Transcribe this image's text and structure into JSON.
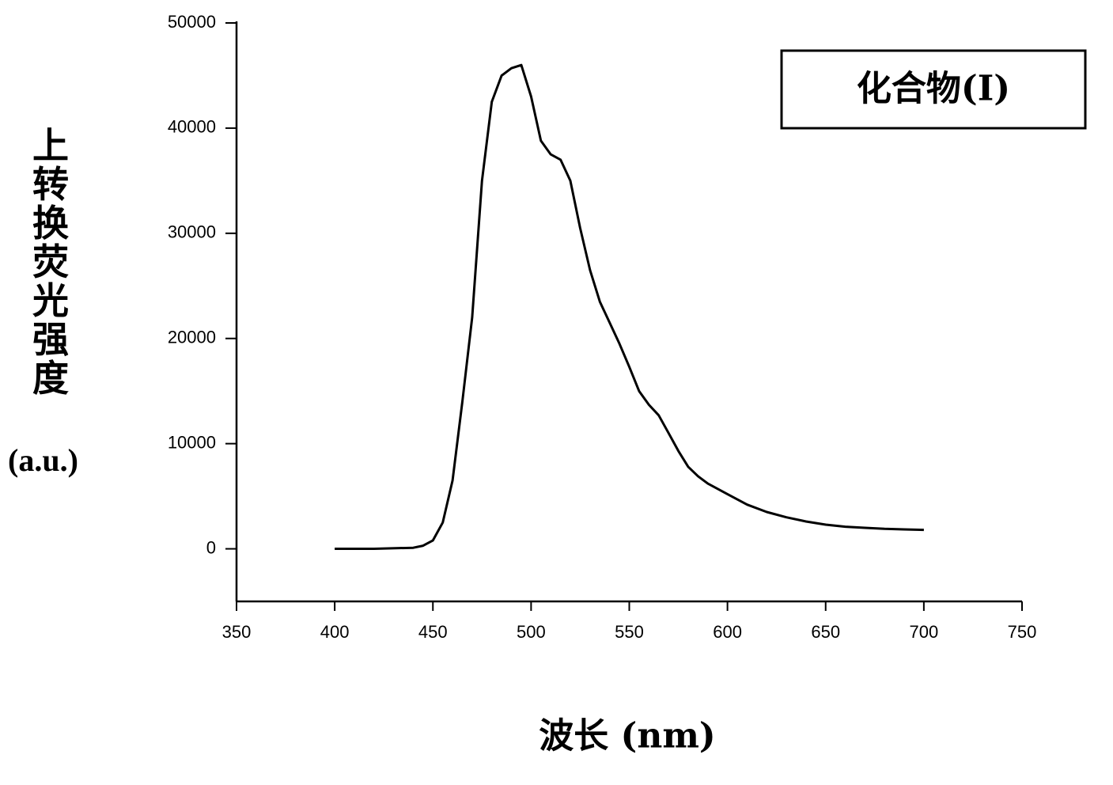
{
  "chart_data": {
    "type": "line",
    "ylabel": "上转换荧光强度",
    "yunit": "(a.u.)",
    "xlabel": "波长 (nm)",
    "legend_label": "化合物(Ⅰ)",
    "x": [
      400,
      420,
      440,
      445,
      450,
      455,
      460,
      465,
      470,
      475,
      480,
      485,
      490,
      495,
      500,
      505,
      510,
      515,
      520,
      525,
      530,
      535,
      540,
      545,
      550,
      555,
      560,
      565,
      570,
      575,
      580,
      585,
      590,
      600,
      610,
      620,
      630,
      640,
      650,
      660,
      670,
      680,
      690,
      700
    ],
    "values": [
      0,
      0,
      100,
      300,
      800,
      2500,
      6500,
      14000,
      22000,
      35000,
      42500,
      45000,
      45700,
      46000,
      43000,
      38800,
      37500,
      37000,
      35000,
      30500,
      26500,
      23500,
      21500,
      19500,
      17300,
      15000,
      13700,
      12700,
      11000,
      9300,
      7800,
      6900,
      6200,
      5200,
      4200,
      3500,
      3000,
      2600,
      2300,
      2100,
      2000,
      1900,
      1850,
      1800
    ],
    "color": "#000000",
    "xlim": [
      350,
      750
    ],
    "xticks": [
      350,
      400,
      450,
      500,
      550,
      600,
      650,
      700,
      750
    ],
    "ylim": [
      -5000,
      50000
    ],
    "yticks": [
      0,
      10000,
      20000,
      30000,
      40000,
      50000
    ]
  }
}
